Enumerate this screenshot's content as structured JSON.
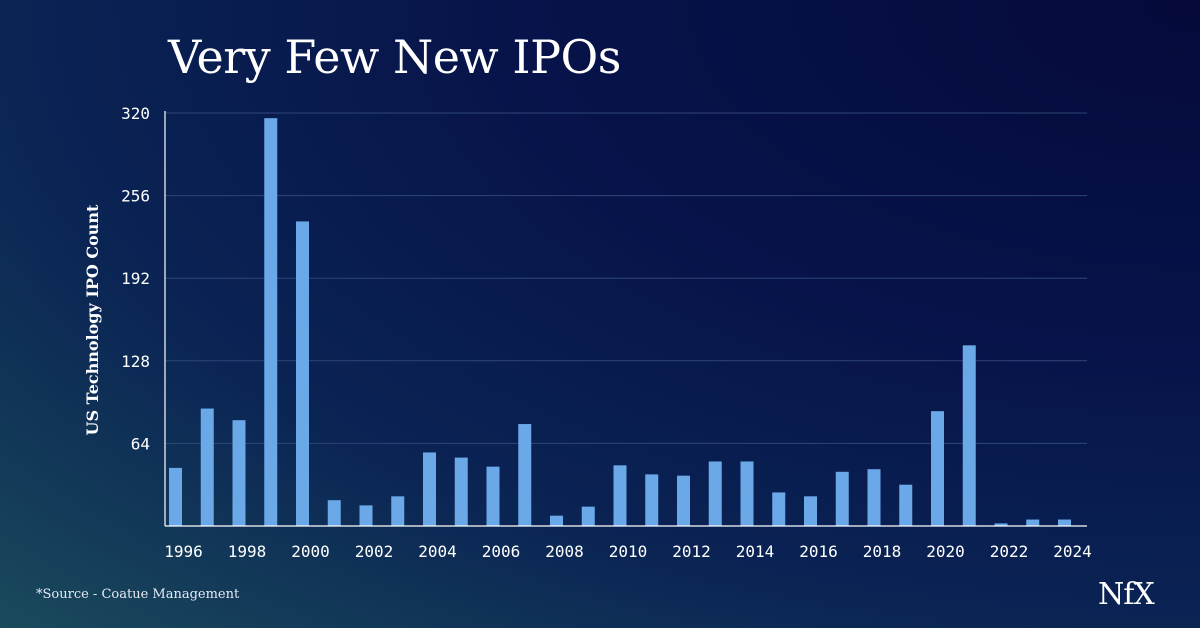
{
  "title": "Very Few New IPOs",
  "source": "*Source - Coatue Management",
  "logo": "NfX",
  "colors": {
    "bar": "#6aa8e8",
    "grid": "#2f4578",
    "axis": "#ffffff",
    "text": "#ffffff"
  },
  "chart_data": {
    "type": "bar",
    "title": "Very Few New IPOs",
    "xlabel": "",
    "ylabel": "US Technology IPO Count",
    "ylim": [
      0,
      320
    ],
    "yticks": [
      64,
      128,
      192,
      256,
      320
    ],
    "xtick_labels": [
      "1996",
      "1998",
      "2000",
      "2002",
      "2004",
      "2006",
      "2008",
      "2010",
      "2012",
      "2014",
      "2016",
      "2018",
      "2020",
      "2022",
      "2024"
    ],
    "categories": [
      "1996",
      "1997",
      "1998",
      "1999",
      "2000",
      "2001",
      "2002",
      "2003",
      "2004",
      "2005",
      "2006",
      "2007",
      "2008",
      "2009",
      "2010",
      "2011",
      "2012",
      "2013",
      "2014",
      "2015",
      "2016",
      "2017",
      "2018",
      "2019",
      "2020",
      "2021",
      "2022",
      "2023",
      "2024"
    ],
    "values": [
      45,
      91,
      82,
      316,
      236,
      20,
      16,
      23,
      57,
      53,
      46,
      79,
      8,
      15,
      47,
      40,
      39,
      50,
      50,
      26,
      23,
      42,
      44,
      32,
      89,
      140,
      2,
      5,
      5
    ],
    "grid": true
  }
}
